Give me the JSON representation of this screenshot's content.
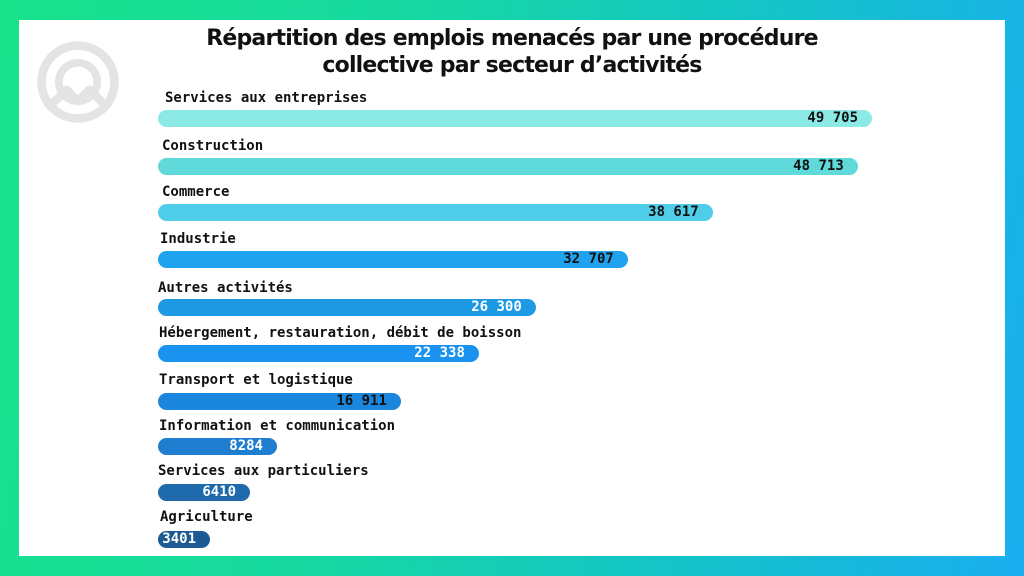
{
  "chart_data": {
    "type": "bar",
    "orientation": "horizontal",
    "title": "Répartition des emplois menacés par une procédure collective par secteur d’activités",
    "title_lines": [
      "Répartition des emplois menacés par une procédure",
      "collective par secteur d’activités"
    ],
    "categories": [
      "Services aux entreprises",
      "Construction",
      "Commerce",
      "Industrie",
      "Autres activités",
      "Hébergement, restauration, débit de boisson",
      "Transport et logistique",
      "Information et communication",
      "Services aux particuliers",
      "Agriculture"
    ],
    "values": [
      49705,
      48713,
      38617,
      32707,
      26300,
      22338,
      16911,
      8284,
      6410,
      3401
    ],
    "value_labels": [
      "49 705",
      "48 713",
      "38 617",
      "32 707",
      "26 300",
      "22 338",
      "16 911",
      "8284",
      "6410",
      "3401"
    ],
    "bar_colors": [
      "#8be9e6",
      "#5fd9d9",
      "#4fcdea",
      "#1fa3ef",
      "#1e9ae4",
      "#1a93f0",
      "#1a86dd",
      "#1f7ed0",
      "#1e6aad",
      "#1d5a93"
    ],
    "value_label_colors": [
      "#111111",
      "#111111",
      "#111111",
      "#111111",
      "#ffffff",
      "#ffffff",
      "#111111",
      "#ffffff",
      "#ffffff",
      "#ffffff"
    ],
    "xlim": [
      0,
      49705
    ],
    "grid": false
  },
  "logo": {
    "icon": "mountain-circle-logo-icon",
    "color": "#e6e6e6"
  }
}
